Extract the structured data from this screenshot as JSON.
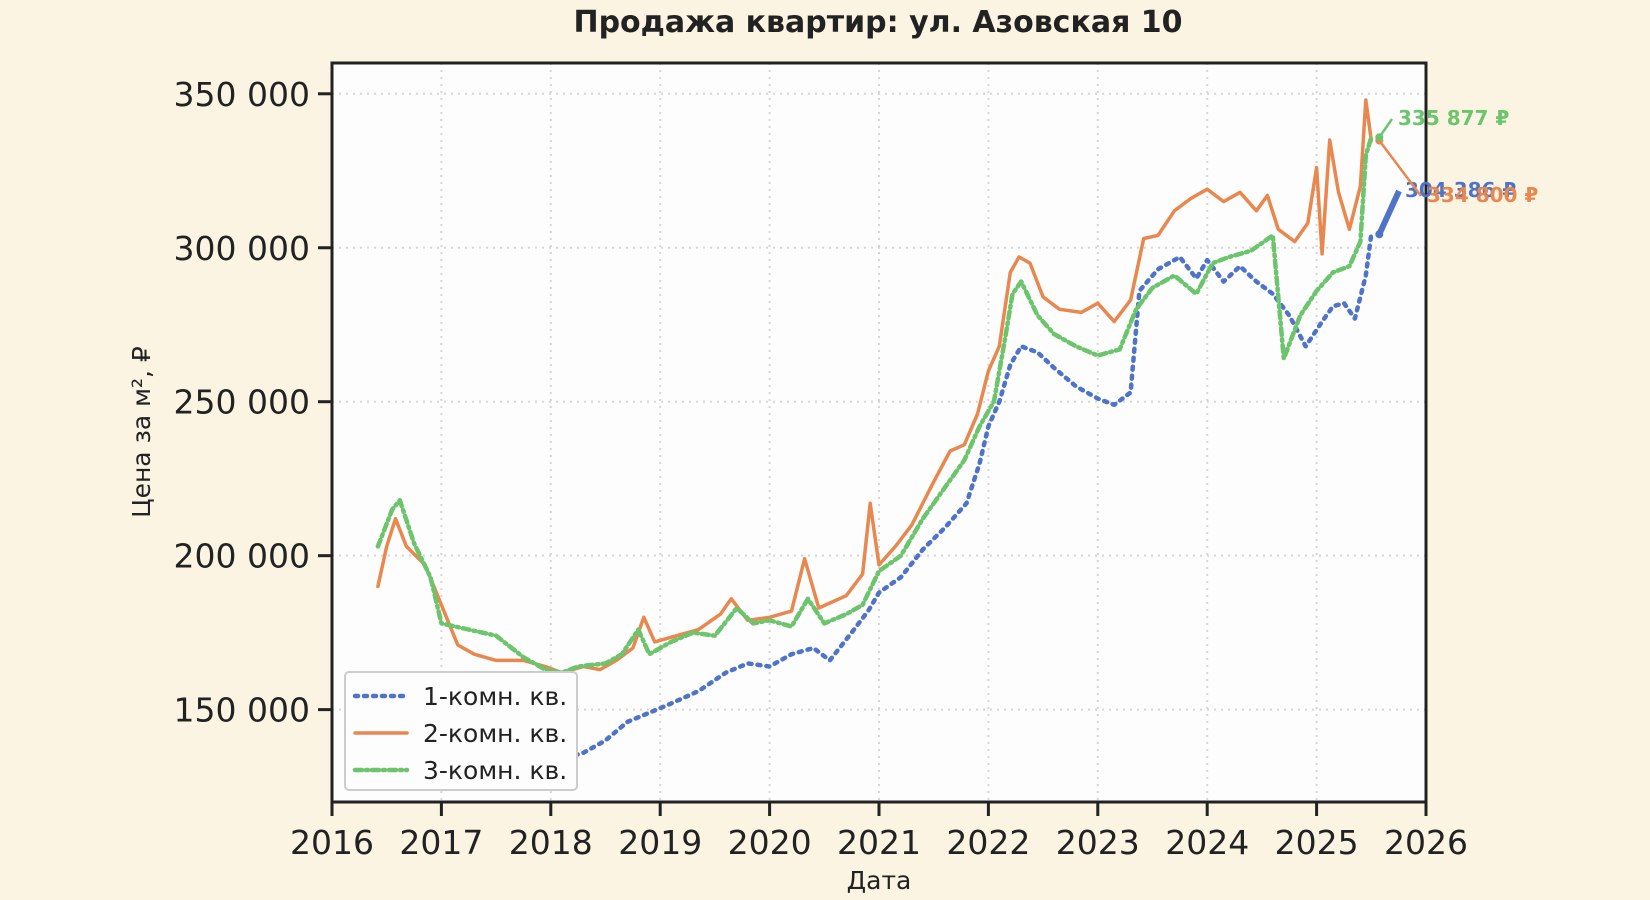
{
  "chart_data": {
    "type": "line",
    "title": "Продажа квартир: ул. Азовская 10",
    "xlabel": "Дата",
    "ylabel": "Цена за м², ₽",
    "xlim": [
      2016,
      2026
    ],
    "ylim": [
      120000,
      360000
    ],
    "x_ticks": [
      2016,
      2017,
      2018,
      2019,
      2020,
      2021,
      2022,
      2023,
      2024,
      2025,
      2026
    ],
    "x_tick_labels": [
      "2016",
      "2017",
      "2018",
      "2019",
      "2020",
      "2021",
      "2022",
      "2023",
      "2024",
      "2025",
      "2026"
    ],
    "y_ticks": [
      150000,
      200000,
      250000,
      300000,
      350000
    ],
    "y_tick_labels": [
      "150 000",
      "200 000",
      "250 000",
      "300 000",
      "350 000"
    ],
    "grid": true,
    "legend_position": "lower-left",
    "series": [
      {
        "name": "1-комн. кв.",
        "color": "#4f74c7",
        "style": "dotted",
        "last_value_label": "304 386 ₽",
        "points": [
          [
            2016.4,
            149000
          ],
          [
            2016.6,
            146000
          ],
          [
            2016.8,
            142000
          ],
          [
            2017.0,
            141000
          ],
          [
            2017.3,
            139000
          ],
          [
            2017.6,
            138000
          ],
          [
            2017.9,
            136000
          ],
          [
            2018.1,
            134000
          ],
          [
            2018.3,
            136000
          ],
          [
            2018.5,
            140000
          ],
          [
            2018.7,
            146000
          ],
          [
            2018.9,
            149000
          ],
          [
            2019.1,
            152000
          ],
          [
            2019.35,
            156000
          ],
          [
            2019.6,
            162000
          ],
          [
            2019.8,
            165000
          ],
          [
            2020.0,
            164000
          ],
          [
            2020.2,
            168000
          ],
          [
            2020.4,
            170000
          ],
          [
            2020.55,
            166000
          ],
          [
            2020.75,
            175000
          ],
          [
            2020.9,
            182000
          ],
          [
            2021.0,
            188000
          ],
          [
            2021.2,
            193000
          ],
          [
            2021.4,
            202000
          ],
          [
            2021.6,
            209000
          ],
          [
            2021.8,
            217000
          ],
          [
            2021.92,
            230000
          ],
          [
            2022.0,
            242000
          ],
          [
            2022.1,
            250000
          ],
          [
            2022.2,
            262000
          ],
          [
            2022.3,
            268000
          ],
          [
            2022.45,
            266000
          ],
          [
            2022.6,
            261000
          ],
          [
            2022.8,
            255000
          ],
          [
            2023.0,
            251000
          ],
          [
            2023.15,
            249000
          ],
          [
            2023.3,
            253000
          ],
          [
            2023.38,
            286000
          ],
          [
            2023.55,
            293000
          ],
          [
            2023.75,
            297000
          ],
          [
            2023.9,
            290000
          ],
          [
            2024.0,
            296000
          ],
          [
            2024.15,
            289000
          ],
          [
            2024.3,
            294000
          ],
          [
            2024.45,
            289000
          ],
          [
            2024.6,
            285000
          ],
          [
            2024.75,
            278000
          ],
          [
            2024.9,
            268000
          ],
          [
            2025.05,
            276000
          ],
          [
            2025.15,
            281000
          ],
          [
            2025.25,
            282000
          ],
          [
            2025.35,
            277000
          ],
          [
            2025.45,
            291000
          ],
          [
            2025.5,
            304386
          ]
        ]
      },
      {
        "name": "2-комн. кв.",
        "color": "#e8874e",
        "style": "solid",
        "last_value_label": "334 800 ₽",
        "points": [
          [
            2016.42,
            190000
          ],
          [
            2016.5,
            203000
          ],
          [
            2016.58,
            212000
          ],
          [
            2016.68,
            203000
          ],
          [
            2016.85,
            197000
          ],
          [
            2017.0,
            184000
          ],
          [
            2017.15,
            171000
          ],
          [
            2017.3,
            168000
          ],
          [
            2017.5,
            166000
          ],
          [
            2017.75,
            166000
          ],
          [
            2017.95,
            164000
          ],
          [
            2018.1,
            162000
          ],
          [
            2018.3,
            164000
          ],
          [
            2018.45,
            163000
          ],
          [
            2018.6,
            166000
          ],
          [
            2018.75,
            170000
          ],
          [
            2018.85,
            180000
          ],
          [
            2018.95,
            172000
          ],
          [
            2019.15,
            174000
          ],
          [
            2019.35,
            176000
          ],
          [
            2019.55,
            181000
          ],
          [
            2019.65,
            186000
          ],
          [
            2019.8,
            179000
          ],
          [
            2020.0,
            180000
          ],
          [
            2020.2,
            182000
          ],
          [
            2020.32,
            199000
          ],
          [
            2020.45,
            183000
          ],
          [
            2020.7,
            187000
          ],
          [
            2020.85,
            194000
          ],
          [
            2020.92,
            217000
          ],
          [
            2021.0,
            197000
          ],
          [
            2021.15,
            203000
          ],
          [
            2021.3,
            210000
          ],
          [
            2021.5,
            224000
          ],
          [
            2021.65,
            234000
          ],
          [
            2021.78,
            236000
          ],
          [
            2021.9,
            246000
          ],
          [
            2022.0,
            260000
          ],
          [
            2022.1,
            268000
          ],
          [
            2022.2,
            292000
          ],
          [
            2022.28,
            297000
          ],
          [
            2022.38,
            295000
          ],
          [
            2022.5,
            284000
          ],
          [
            2022.65,
            280000
          ],
          [
            2022.85,
            279000
          ],
          [
            2023.0,
            282000
          ],
          [
            2023.15,
            276000
          ],
          [
            2023.3,
            283000
          ],
          [
            2023.42,
            303000
          ],
          [
            2023.55,
            304000
          ],
          [
            2023.7,
            312000
          ],
          [
            2023.85,
            316000
          ],
          [
            2024.0,
            319000
          ],
          [
            2024.15,
            315000
          ],
          [
            2024.3,
            318000
          ],
          [
            2024.45,
            312000
          ],
          [
            2024.55,
            317000
          ],
          [
            2024.65,
            306000
          ],
          [
            2024.8,
            302000
          ],
          [
            2024.92,
            308000
          ],
          [
            2025.0,
            326000
          ],
          [
            2025.05,
            298000
          ],
          [
            2025.12,
            335000
          ],
          [
            2025.2,
            318000
          ],
          [
            2025.3,
            306000
          ],
          [
            2025.4,
            320000
          ],
          [
            2025.45,
            348000
          ],
          [
            2025.5,
            334800
          ]
        ]
      },
      {
        "name": "3-комн. кв.",
        "color": "#6cc46c",
        "style": "dashdot",
        "last_value_label": "335 877 ₽",
        "points": [
          [
            2016.42,
            203000
          ],
          [
            2016.55,
            215000
          ],
          [
            2016.62,
            218000
          ],
          [
            2016.75,
            204000
          ],
          [
            2016.9,
            193000
          ],
          [
            2017.0,
            178000
          ],
          [
            2017.25,
            176000
          ],
          [
            2017.5,
            174000
          ],
          [
            2017.75,
            167000
          ],
          [
            2017.95,
            163000
          ],
          [
            2018.1,
            162000
          ],
          [
            2018.25,
            164000
          ],
          [
            2018.5,
            165000
          ],
          [
            2018.65,
            168000
          ],
          [
            2018.8,
            176000
          ],
          [
            2018.9,
            168000
          ],
          [
            2019.1,
            172000
          ],
          [
            2019.3,
            175000
          ],
          [
            2019.5,
            174000
          ],
          [
            2019.7,
            183000
          ],
          [
            2019.85,
            178000
          ],
          [
            2020.0,
            179000
          ],
          [
            2020.2,
            177000
          ],
          [
            2020.35,
            186000
          ],
          [
            2020.5,
            178000
          ],
          [
            2020.7,
            181000
          ],
          [
            2020.85,
            184000
          ],
          [
            2021.0,
            195000
          ],
          [
            2021.2,
            200000
          ],
          [
            2021.4,
            212000
          ],
          [
            2021.6,
            222000
          ],
          [
            2021.78,
            231000
          ],
          [
            2021.92,
            242000
          ],
          [
            2022.05,
            250000
          ],
          [
            2022.15,
            270000
          ],
          [
            2022.22,
            285000
          ],
          [
            2022.3,
            289000
          ],
          [
            2022.45,
            278000
          ],
          [
            2022.6,
            272000
          ],
          [
            2022.8,
            268000
          ],
          [
            2023.0,
            265000
          ],
          [
            2023.2,
            267000
          ],
          [
            2023.35,
            280000
          ],
          [
            2023.5,
            287000
          ],
          [
            2023.7,
            291000
          ],
          [
            2023.9,
            285000
          ],
          [
            2024.05,
            295000
          ],
          [
            2024.2,
            297000
          ],
          [
            2024.4,
            299000
          ],
          [
            2024.6,
            304000
          ],
          [
            2024.7,
            264000
          ],
          [
            2024.85,
            278000
          ],
          [
            2025.0,
            286000
          ],
          [
            2025.15,
            292000
          ],
          [
            2025.3,
            294000
          ],
          [
            2025.4,
            302000
          ],
          [
            2025.45,
            330000
          ],
          [
            2025.5,
            335877
          ]
        ]
      }
    ]
  }
}
